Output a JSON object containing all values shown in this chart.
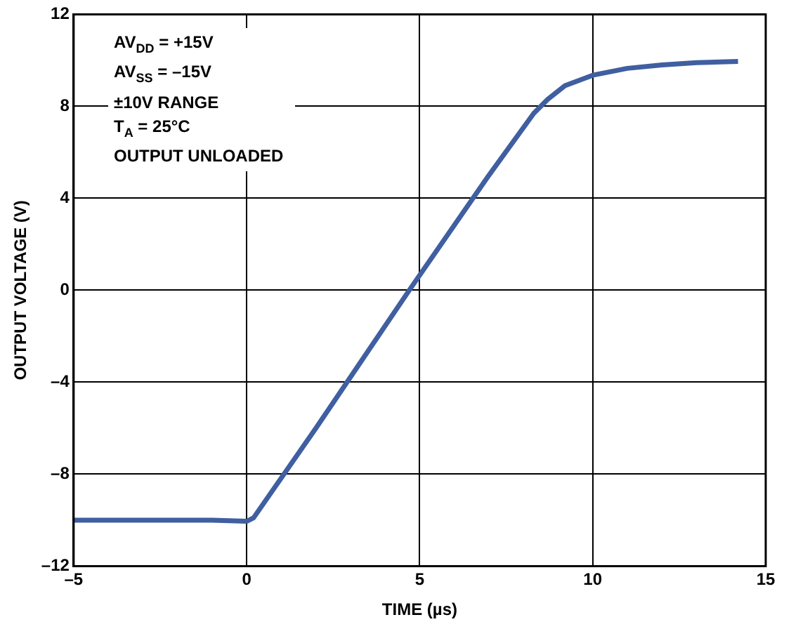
{
  "chart_data": {
    "type": "line",
    "xlabel": "TIME (µs)",
    "ylabel": "OUTPUT VOLTAGE (V)",
    "annotations": [
      "AV$_{DD}$ = +15V",
      "AV$_{SS}$ = –15V",
      "±10V RANGE",
      "T$_{A}$ = 25°C",
      "OUTPUT UNLOADED"
    ],
    "x": [
      -5,
      -3,
      -1,
      0,
      0.2,
      2,
      4.7,
      7,
      8.3,
      8.7,
      9.2,
      10,
      11,
      12,
      13,
      14.2
    ],
    "series": [
      {
        "color": "#3f5fa0",
        "values": [
          -10,
          -10,
          -10,
          -10.05,
          -9.9,
          -6,
          0,
          5,
          7.7,
          8.3,
          8.9,
          9.35,
          9.65,
          9.8,
          9.9,
          9.95
        ]
      }
    ],
    "xlim": [
      -5,
      15
    ],
    "xticks": [
      {
        "value": -5,
        "label": "–5"
      },
      0,
      5,
      10,
      15
    ],
    "ylim": [
      -12,
      12
    ],
    "yticks": [
      {
        "value": -12,
        "label": "–12"
      },
      {
        "value": -8,
        "label": "–8"
      },
      {
        "value": -4,
        "label": "–4"
      },
      0,
      4,
      8,
      12
    ],
    "grid": true,
    "legend": false,
    "marker": "none",
    "line_style": "solid"
  }
}
